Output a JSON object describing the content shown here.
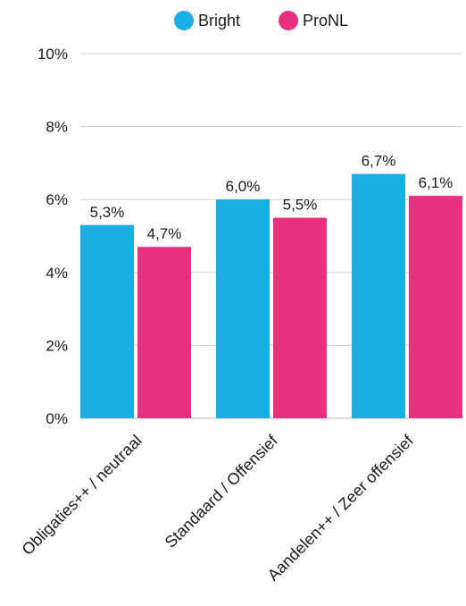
{
  "chart_data": {
    "type": "bar",
    "categories": [
      "Obligaties++ / neutraal",
      "Standaard / Offensief",
      "Aandelen++ / Zeer offensief"
    ],
    "series": [
      {
        "name": "Bright",
        "color": "#1BAEE4",
        "values": [
          5.3,
          6.0,
          6.7
        ],
        "labels": [
          "5,3%",
          "6,0%",
          "6,7%"
        ]
      },
      {
        "name": "ProNL",
        "color": "#E8307F",
        "values": [
          4.7,
          5.5,
          6.1
        ],
        "labels": [
          "4,7%",
          "5,5%",
          "6,1%"
        ]
      }
    ],
    "ylim": [
      0,
      10
    ],
    "yticks": [
      {
        "value": 0,
        "label": "0%"
      },
      {
        "value": 2,
        "label": "2%"
      },
      {
        "value": 4,
        "label": "4%"
      },
      {
        "value": 6,
        "label": "6%"
      },
      {
        "value": 8,
        "label": "8%"
      },
      {
        "value": 10,
        "label": "10%"
      }
    ],
    "grid": true,
    "legend": "top-center",
    "title": "",
    "xlabel": "",
    "ylabel": ""
  }
}
